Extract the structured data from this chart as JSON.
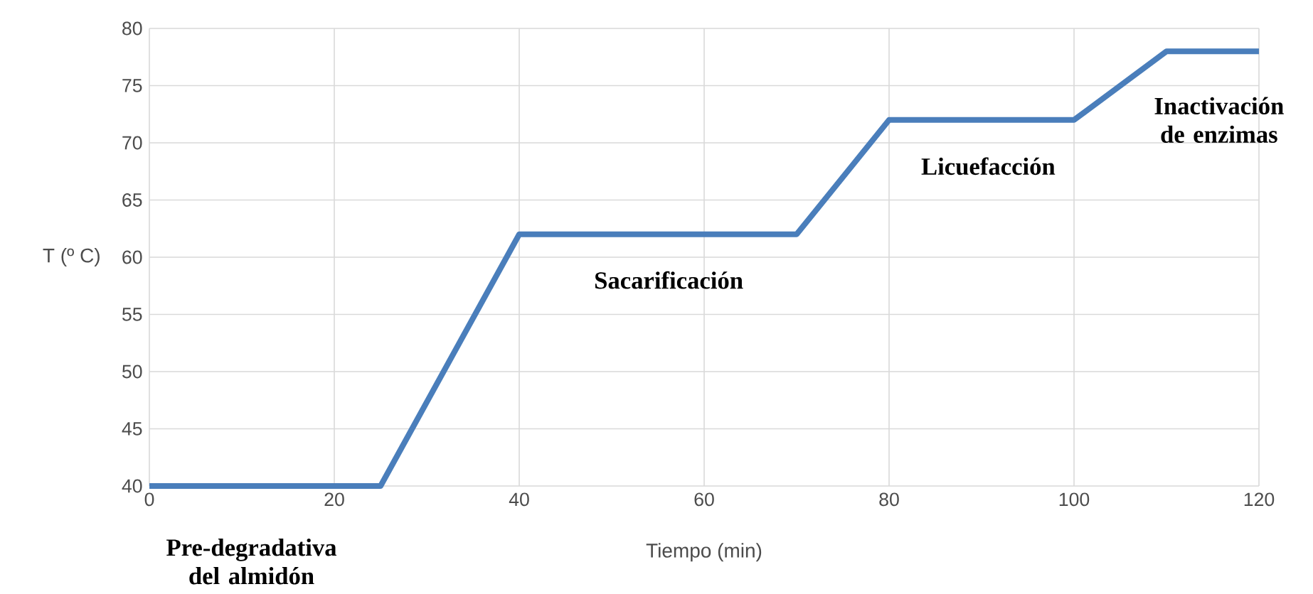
{
  "chart_data": {
    "type": "line",
    "xlabel": "Tiempo (min)",
    "ylabel": "T (º C)",
    "x": [
      0,
      25,
      40,
      70,
      80,
      100,
      110,
      120
    ],
    "series": [
      {
        "color": "#4a7ebb",
        "values": [
          40,
          40,
          62,
          62,
          72,
          72,
          78,
          78
        ]
      }
    ],
    "xlim": [
      0,
      120
    ],
    "xticks": [
      0,
      20,
      40,
      60,
      80,
      100,
      120
    ],
    "ylim": [
      40,
      80
    ],
    "yticks": [
      40,
      45,
      50,
      55,
      60,
      65,
      70,
      75,
      80
    ],
    "grid": true,
    "line_style": "solid",
    "annotations": [
      "Pre-degradativa del almidón",
      "Sacarificación",
      "Licuefacción",
      "Inactivación de enzimas"
    ]
  }
}
